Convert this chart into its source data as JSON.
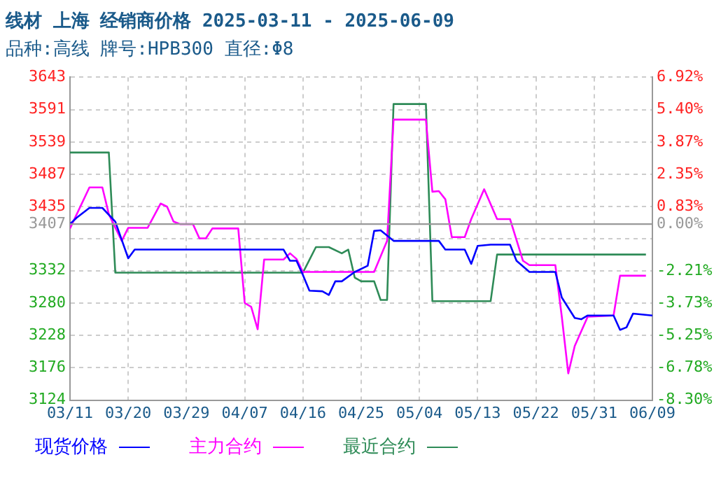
{
  "chart_data": {
    "type": "line",
    "title": "线材 上海 经销商价格 2025-03-11 - 2025-06-09",
    "subtitle": "品种:高线 牌号:HPB300 直径:Φ8",
    "xlim": [
      "2025-03-11",
      "2025-06-09"
    ],
    "xticks": [
      {
        "value": "2025-03-11",
        "label": "03/11"
      },
      {
        "value": "2025-03-20",
        "label": "03/20"
      },
      {
        "value": "2025-03-29",
        "label": "03/29"
      },
      {
        "value": "2025-04-07",
        "label": "04/07"
      },
      {
        "value": "2025-04-16",
        "label": "04/16"
      },
      {
        "value": "2025-04-25",
        "label": "04/25"
      },
      {
        "value": "2025-05-04",
        "label": "05/04"
      },
      {
        "value": "2025-05-13",
        "label": "05/13"
      },
      {
        "value": "2025-05-22",
        "label": "05/22"
      },
      {
        "value": "2025-05-31",
        "label": "05/31"
      },
      {
        "value": "2025-06-09",
        "label": "06/09"
      }
    ],
    "ylim": [
      3124,
      3643
    ],
    "yticks": [
      3124,
      3176,
      3228,
      3280,
      3332,
      {
        "value": 3384,
        "label": null
      },
      3407,
      3435,
      3487,
      3539,
      3591,
      3643
    ],
    "y2lim": [
      -8.3,
      6.92
    ],
    "y2ticks": [
      {
        "value": -8.3,
        "label": "-8.30%"
      },
      {
        "value": -6.78,
        "label": "-6.78%"
      },
      {
        "value": -5.25,
        "label": "-5.25%"
      },
      {
        "value": -3.73,
        "label": "-3.73%"
      },
      {
        "value": -2.21,
        "label": "-2.21%"
      },
      {
        "value": 0.0,
        "label": "0.00%"
      },
      {
        "value": 0.83,
        "label": "0.83%"
      },
      {
        "value": 2.35,
        "label": "2.35%"
      },
      {
        "value": 3.87,
        "label": "3.87%"
      },
      {
        "value": 5.4,
        "label": "5.40%"
      },
      {
        "value": 6.92,
        "label": "6.92%"
      }
    ],
    "ref_lines": [
      {
        "axis": "y",
        "value": 3407,
        "color": "#999999",
        "line_style": "solid"
      }
    ],
    "grid": true,
    "legend": "bottom",
    "marker": "none",
    "line_style": "solid",
    "series": [
      {
        "name": "现货价格",
        "color": "#0000ff",
        "x": [
          "2025-03-11",
          "2025-03-12",
          "2025-03-14",
          "2025-03-16",
          "2025-03-18",
          "2025-03-20",
          "2025-03-21",
          "2025-04-13",
          "2025-04-14",
          "2025-04-15",
          "2025-04-16",
          "2025-04-17",
          "2025-04-19",
          "2025-04-20",
          "2025-04-21",
          "2025-04-22",
          "2025-04-24",
          "2025-04-26",
          "2025-04-27",
          "2025-04-28",
          "2025-04-30",
          "2025-05-07",
          "2025-05-08",
          "2025-05-11",
          "2025-05-12",
          "2025-05-13",
          "2025-05-15",
          "2025-05-18",
          "2025-05-19",
          "2025-05-21",
          "2025-05-25",
          "2025-05-26",
          "2025-05-28",
          "2025-05-29",
          "2025-05-30",
          "2025-06-03",
          "2025-06-04",
          "2025-06-05",
          "2025-06-06",
          "2025-06-09"
        ],
        "values": [
          3407,
          3417,
          3433,
          3433,
          3411,
          3352,
          3366,
          3366,
          3348,
          3348,
          3325,
          3300,
          3299,
          3293,
          3315,
          3315,
          3330,
          3340,
          3396,
          3397,
          3380,
          3380,
          3366,
          3366,
          3343,
          3372,
          3374,
          3374,
          3348,
          3330,
          3330,
          3289,
          3256,
          3254,
          3260,
          3260,
          3237,
          3241,
          3263,
          3260
        ]
      },
      {
        "name": "主力合约",
        "color": "#ff00ff",
        "x": [
          "2025-03-11",
          "2025-03-14",
          "2025-03-16",
          "2025-03-17",
          "2025-03-19",
          "2025-03-20",
          "2025-03-23",
          "2025-03-25",
          "2025-03-26",
          "2025-03-27",
          "2025-03-28",
          "2025-03-30",
          "2025-03-31",
          "2025-04-01",
          "2025-04-02",
          "2025-04-06",
          "2025-04-07",
          "2025-04-08",
          "2025-04-09",
          "2025-04-10",
          "2025-04-13",
          "2025-04-14",
          "2025-04-15",
          "2025-04-16",
          "2025-04-27",
          "2025-04-29",
          "2025-04-30",
          "2025-05-05",
          "2025-05-06",
          "2025-05-07",
          "2025-05-08",
          "2025-05-09",
          "2025-05-11",
          "2025-05-12",
          "2025-05-14",
          "2025-05-16",
          "2025-05-18",
          "2025-05-20",
          "2025-05-21",
          "2025-05-25",
          "2025-05-26",
          "2025-05-27",
          "2025-05-28",
          "2025-05-30",
          "2025-06-03",
          "2025-06-04",
          "2025-06-08"
        ],
        "values": [
          3400,
          3466,
          3466,
          3423,
          3380,
          3401,
          3401,
          3440,
          3435,
          3411,
          3407,
          3407,
          3384,
          3384,
          3400,
          3400,
          3280,
          3274,
          3238,
          3350,
          3350,
          3360,
          3351,
          3330,
          3330,
          3380,
          3575,
          3575,
          3459,
          3460,
          3447,
          3386,
          3386,
          3415,
          3463,
          3415,
          3415,
          3348,
          3341,
          3341,
          3258,
          3167,
          3211,
          3258,
          3260,
          3324,
          3324
        ]
      },
      {
        "name": "最近合约",
        "color": "#2e8b57",
        "x": [
          "2025-03-11",
          "2025-03-17",
          "2025-03-18",
          "2025-04-16",
          "2025-04-18",
          "2025-04-20",
          "2025-04-22",
          "2025-04-23",
          "2025-04-24",
          "2025-04-25",
          "2025-04-27",
          "2025-04-28",
          "2025-04-29",
          "2025-04-30",
          "2025-05-05",
          "2025-05-06",
          "2025-05-15",
          "2025-05-16",
          "2025-06-08"
        ],
        "values": [
          3522,
          3522,
          3329,
          3329,
          3370,
          3370,
          3360,
          3366,
          3321,
          3315,
          3315,
          3285,
          3285,
          3600,
          3600,
          3283,
          3283,
          3358,
          3358
        ]
      }
    ]
  }
}
